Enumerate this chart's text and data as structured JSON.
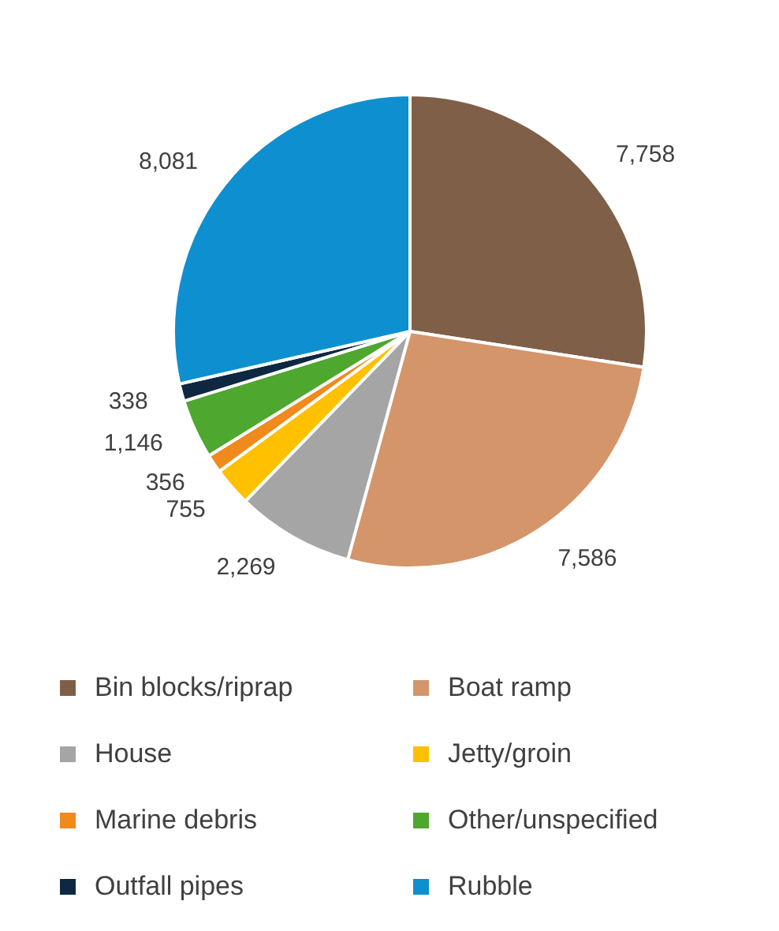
{
  "chart_data": {
    "type": "pie",
    "categories": [
      "Bin blocks/riprap",
      "Boat ramp",
      "House",
      "Jetty/groin",
      "Marine debris",
      "Other/unspecified",
      "Outfall pipes",
      "Rubble"
    ],
    "values": [
      7758,
      7586,
      2269,
      755,
      356,
      1146,
      338,
      8081
    ],
    "colors": [
      "#7f5f48",
      "#d4956a",
      "#a5a5a5",
      "#ffc000",
      "#f08a1c",
      "#4ea72e",
      "#0e2841",
      "#0e8fd0"
    ],
    "value_labels": [
      "7,758",
      "7,586",
      "2,269",
      "755",
      "356",
      "1,146",
      "338",
      "8,081"
    ],
    "legend": "bottom"
  }
}
